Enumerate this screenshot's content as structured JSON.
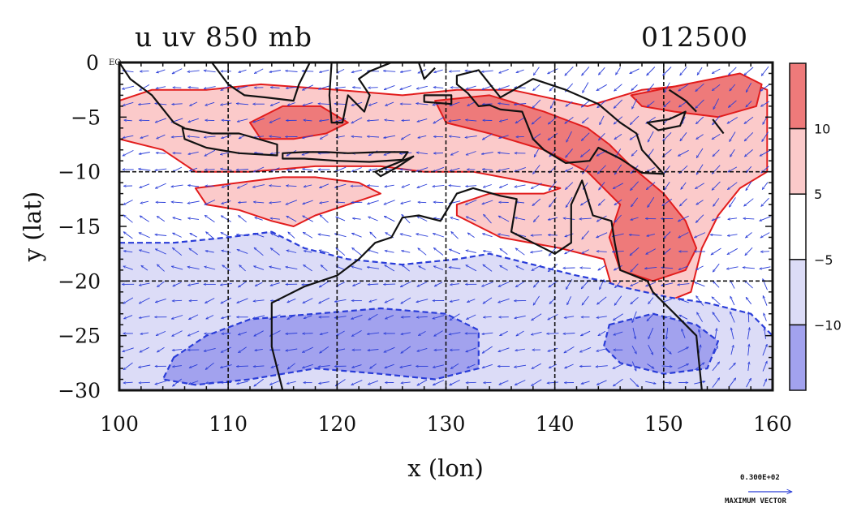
{
  "figure": {
    "title_left": "u uv 850 mb",
    "title_right": "012500",
    "vector_key_value": "0.300E+02",
    "vector_key_label": "MAXIMUM VECTOR"
  },
  "chart_data": {
    "type": "contour-vector map",
    "xlabel": "x (lon)",
    "ylabel": "y (lat)",
    "xlim": [
      100,
      160
    ],
    "ylim": [
      -30,
      0
    ],
    "xticks": [
      100,
      110,
      120,
      130,
      140,
      150,
      160
    ],
    "ytick_labels": [
      "0 EQ",
      "−5",
      "−10",
      "−15",
      "−20",
      "−25",
      "−30"
    ],
    "ytick_values": [
      0,
      -5,
      -10,
      -15,
      -20,
      -25,
      -30
    ],
    "grid_lon": [
      110,
      120,
      130,
      140,
      150
    ],
    "grid_lat": [
      -10,
      -20
    ],
    "colorbar": {
      "labels": [
        "10",
        "5",
        "−5",
        "−10"
      ],
      "bands": [
        {
          "range": "> 10",
          "color": "#ee7a7a"
        },
        {
          "range": "5 to 10",
          "color": "#fbcaca"
        },
        {
          "range": "-5 to 5",
          "color": "#ffffff"
        },
        {
          "range": "-10 to -5",
          "color": "#dcdcf7"
        },
        {
          "range": "< -10",
          "color": "#a2a2ee"
        }
      ]
    },
    "regions": [
      {
        "level": 5,
        "lonlat": [
          [
            100,
            -3.5
          ],
          [
            103,
            -2.5
          ],
          [
            108,
            -2.5
          ],
          [
            113,
            -2
          ],
          [
            120,
            -2.5
          ],
          [
            126,
            -3
          ],
          [
            131,
            -2.5
          ],
          [
            136,
            -2.5
          ],
          [
            143,
            -4
          ],
          [
            148,
            -2.5
          ],
          [
            153,
            -2
          ],
          [
            157,
            -1.5
          ],
          [
            159.5,
            -2.5
          ],
          [
            159.5,
            -10
          ],
          [
            157,
            -11.5
          ],
          [
            155,
            -14
          ],
          [
            153.5,
            -17
          ],
          [
            152.5,
            -21
          ],
          [
            150,
            -22
          ],
          [
            145.5,
            -21.5
          ],
          [
            144.5,
            -18
          ],
          [
            140.5,
            -17
          ],
          [
            135,
            -16
          ],
          [
            131,
            -14
          ],
          [
            131,
            -13
          ],
          [
            134,
            -12
          ],
          [
            139,
            -12
          ],
          [
            140.5,
            -11.5
          ],
          [
            132.5,
            -10
          ],
          [
            128,
            -10
          ],
          [
            124,
            -9.5
          ],
          [
            118,
            -9.5
          ],
          [
            112,
            -10
          ],
          [
            107,
            -10
          ],
          [
            104,
            -8
          ],
          [
            100,
            -7
          ]
        ]
      },
      {
        "level": 5,
        "lonlat": [
          [
            107,
            -11.5
          ],
          [
            111,
            -11
          ],
          [
            115,
            -10.5
          ],
          [
            118,
            -10.5
          ],
          [
            122,
            -11
          ],
          [
            124,
            -12
          ],
          [
            121,
            -13
          ],
          [
            118,
            -14
          ],
          [
            116,
            -15
          ],
          [
            114,
            -14.5
          ],
          [
            111,
            -13.5
          ],
          [
            108,
            -13
          ]
        ]
      },
      {
        "level": 10,
        "lonlat": [
          [
            112,
            -5.5
          ],
          [
            115,
            -4
          ],
          [
            118.5,
            -4
          ],
          [
            121,
            -5.5
          ],
          [
            119,
            -6.5
          ],
          [
            116,
            -7
          ],
          [
            113,
            -7
          ]
        ]
      },
      {
        "level": 10,
        "lonlat": [
          [
            129,
            -3.5
          ],
          [
            134,
            -3
          ],
          [
            139,
            -4.5
          ],
          [
            143,
            -6
          ],
          [
            145,
            -7.5
          ],
          [
            147,
            -9.5
          ],
          [
            150,
            -12
          ],
          [
            152,
            -14.5
          ],
          [
            153,
            -17
          ],
          [
            152,
            -19
          ],
          [
            149,
            -20
          ],
          [
            146,
            -19
          ],
          [
            145,
            -16
          ],
          [
            146,
            -13
          ],
          [
            143,
            -10
          ],
          [
            139,
            -8
          ],
          [
            134,
            -6.5
          ],
          [
            130,
            -5.5
          ]
        ]
      },
      {
        "level": 10,
        "lonlat": [
          [
            147,
            -3
          ],
          [
            152,
            -2
          ],
          [
            157,
            -1
          ],
          [
            159,
            -2
          ],
          [
            158.5,
            -4
          ],
          [
            155,
            -5
          ],
          [
            151,
            -4.5
          ],
          [
            148,
            -4
          ]
        ]
      },
      {
        "level": -5,
        "lonlat": [
          [
            100,
            -16.5
          ],
          [
            105,
            -16.5
          ],
          [
            110,
            -16
          ],
          [
            114,
            -15.5
          ],
          [
            117,
            -17
          ],
          [
            121,
            -18
          ],
          [
            126,
            -18.5
          ],
          [
            131,
            -18
          ],
          [
            134,
            -17.5
          ],
          [
            138,
            -18.5
          ],
          [
            142,
            -19.5
          ],
          [
            144.5,
            -20
          ],
          [
            146,
            -20.5
          ],
          [
            150.5,
            -21.5
          ],
          [
            154,
            -22
          ],
          [
            156,
            -22.5
          ],
          [
            158,
            -23
          ],
          [
            160,
            -25
          ],
          [
            160,
            -30
          ],
          [
            100,
            -30
          ]
        ]
      },
      {
        "level": -10,
        "lonlat": [
          [
            105,
            -27
          ],
          [
            108,
            -25
          ],
          [
            112,
            -23.5
          ],
          [
            118,
            -23
          ],
          [
            124,
            -22.5
          ],
          [
            130,
            -23
          ],
          [
            133,
            -24.5
          ],
          [
            133,
            -28
          ],
          [
            129,
            -29
          ],
          [
            124,
            -28.5
          ],
          [
            118,
            -28
          ],
          [
            112,
            -29
          ],
          [
            107,
            -29.5
          ],
          [
            104,
            -29
          ]
        ]
      },
      {
        "level": -10,
        "lonlat": [
          [
            145,
            -24
          ],
          [
            149,
            -23
          ],
          [
            153,
            -24
          ],
          [
            155,
            -25.5
          ],
          [
            154,
            -28
          ],
          [
            150,
            -28.5
          ],
          [
            146,
            -27.5
          ],
          [
            144.5,
            -26
          ]
        ]
      }
    ],
    "coastlines": [
      {
        "name": "Australia",
        "closed": true,
        "lonlat": [
          [
            114,
            -22
          ],
          [
            114,
            -26
          ],
          [
            115,
            -30
          ],
          [
            153.5,
            -30
          ],
          [
            153,
            -25
          ],
          [
            151,
            -23
          ],
          [
            149,
            -21
          ],
          [
            148.5,
            -20
          ],
          [
            146,
            -19
          ],
          [
            145.5,
            -16.5
          ],
          [
            145.2,
            -14.5
          ],
          [
            143.5,
            -14
          ],
          [
            142.5,
            -10.8
          ],
          [
            141.5,
            -13
          ],
          [
            141.5,
            -16.5
          ],
          [
            140,
            -17.5
          ],
          [
            138,
            -16.5
          ],
          [
            136,
            -15.5
          ],
          [
            136.5,
            -12.5
          ],
          [
            135,
            -12.2
          ],
          [
            132.5,
            -11.5
          ],
          [
            131,
            -12
          ],
          [
            129.5,
            -14.5
          ],
          [
            127.5,
            -14
          ],
          [
            126,
            -14.2
          ],
          [
            125,
            -16
          ],
          [
            123.5,
            -16.5
          ],
          [
            122,
            -18
          ],
          [
            120,
            -19.5
          ],
          [
            117,
            -20.5
          ]
        ]
      },
      {
        "name": "Sumatra",
        "closed": false,
        "lonlat": [
          [
            100,
            0
          ],
          [
            101,
            -1.5
          ],
          [
            103,
            -3
          ],
          [
            105,
            -5.5
          ],
          [
            106,
            -6
          ]
        ]
      },
      {
        "name": "Java",
        "closed": true,
        "lonlat": [
          [
            105.8,
            -6
          ],
          [
            108.5,
            -6.5
          ],
          [
            111,
            -6.5
          ],
          [
            114.5,
            -7.5
          ],
          [
            114.5,
            -8.5
          ],
          [
            111,
            -8.3
          ],
          [
            108,
            -7.8
          ],
          [
            106,
            -7
          ]
        ]
      },
      {
        "name": "Lesser Sunda",
        "closed": true,
        "lonlat": [
          [
            115,
            -8.3
          ],
          [
            117,
            -8.2
          ],
          [
            119,
            -8.2
          ],
          [
            121,
            -8.3
          ],
          [
            124,
            -8.2
          ],
          [
            126.5,
            -8.2
          ],
          [
            126,
            -8.9
          ],
          [
            123,
            -9.1
          ],
          [
            120,
            -9
          ],
          [
            117,
            -8.8
          ],
          [
            115,
            -8.8
          ]
        ]
      },
      {
        "name": "Timor",
        "closed": true,
        "lonlat": [
          [
            123.5,
            -10
          ],
          [
            126,
            -9
          ],
          [
            127,
            -8.6
          ],
          [
            125.5,
            -9.6
          ],
          [
            124,
            -10.4
          ]
        ]
      },
      {
        "name": "Borneo",
        "closed": false,
        "lonlat": [
          [
            108.5,
            0
          ],
          [
            110,
            -2
          ],
          [
            111.5,
            -3
          ],
          [
            113.5,
            -3.2
          ],
          [
            116,
            -3.5
          ],
          [
            116.5,
            -2
          ],
          [
            117.5,
            0
          ]
        ]
      },
      {
        "name": "Sulawesi",
        "closed": false,
        "lonlat": [
          [
            119.5,
            0
          ],
          [
            119.3,
            -3
          ],
          [
            119.5,
            -5.5
          ],
          [
            120.5,
            -5.5
          ],
          [
            121,
            -3
          ],
          [
            122.5,
            -4.5
          ],
          [
            123,
            -3
          ],
          [
            122,
            -1.5
          ],
          [
            123,
            -0.8
          ],
          [
            125,
            0
          ]
        ]
      },
      {
        "name": "Halmahera",
        "closed": false,
        "lonlat": [
          [
            127.5,
            0
          ],
          [
            128,
            -1.5
          ],
          [
            129,
            -0.5
          ]
        ]
      },
      {
        "name": "Seram",
        "closed": true,
        "lonlat": [
          [
            128,
            -3
          ],
          [
            130.5,
            -3
          ],
          [
            130.5,
            -3.8
          ],
          [
            128,
            -3.6
          ]
        ]
      },
      {
        "name": "New Guinea",
        "closed": true,
        "lonlat": [
          [
            131,
            -1.2
          ],
          [
            133,
            -0.7
          ],
          [
            135,
            -3.2
          ],
          [
            138,
            -1.5
          ],
          [
            141,
            -2.5
          ],
          [
            144,
            -3.8
          ],
          [
            146,
            -5.5
          ],
          [
            147.5,
            -6.5
          ],
          [
            148,
            -8
          ],
          [
            150,
            -10.2
          ],
          [
            148,
            -10.1
          ],
          [
            146,
            -8.8
          ],
          [
            144,
            -7.8
          ],
          [
            143.2,
            -9
          ],
          [
            141,
            -9.2
          ],
          [
            139,
            -8
          ],
          [
            138,
            -7
          ],
          [
            137,
            -4.5
          ],
          [
            135,
            -4.3
          ],
          [
            134,
            -3.9
          ],
          [
            133,
            -4
          ],
          [
            132,
            -2.8
          ],
          [
            131,
            -2
          ]
        ]
      },
      {
        "name": "New Britain",
        "closed": true,
        "lonlat": [
          [
            148.5,
            -5.5
          ],
          [
            150.5,
            -5.2
          ],
          [
            152,
            -4.5
          ],
          [
            151.5,
            -5.8
          ],
          [
            149.5,
            -6.2
          ]
        ]
      },
      {
        "name": "New Ireland",
        "closed": false,
        "lonlat": [
          [
            150.5,
            -2.5
          ],
          [
            152,
            -3.5
          ],
          [
            153,
            -4.5
          ]
        ]
      },
      {
        "name": "Bougainville",
        "closed": false,
        "lonlat": [
          [
            154.5,
            -5.2
          ],
          [
            155.5,
            -6.5
          ]
        ]
      }
    ],
    "vector_field": {
      "u_scale_max": 30,
      "spacing_deg": 1.5
    }
  }
}
